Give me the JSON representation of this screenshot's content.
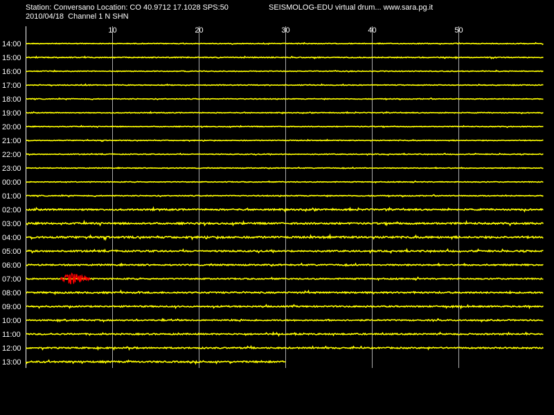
{
  "header": {
    "station_line": "Station: Conversano Location: CO 40.9712 17.1028 SPS:50",
    "date_channel_line": "2010/04/18  Channel 1 N SHN",
    "software_line": "SEISMOLOG-EDU virtual drum... www.sara.pg.it"
  },
  "colors": {
    "background": "#000000",
    "trace": "#ffff00",
    "event": "#ff0000",
    "grid": "#ffffff",
    "text": "#ffffff"
  },
  "chart_data": {
    "type": "line",
    "x_ticks": [
      "10",
      "20",
      "30",
      "40",
      "50"
    ],
    "x_tick_values": [
      10,
      20,
      30,
      40,
      50
    ],
    "xlim": [
      0,
      60
    ],
    "grid": true,
    "rows": [
      {
        "label": "14:00",
        "amp": 1.0
      },
      {
        "label": "15:00",
        "amp": 1.2
      },
      {
        "label": "16:00",
        "amp": 1.0
      },
      {
        "label": "17:00",
        "amp": 1.0
      },
      {
        "label": "18:00",
        "amp": 1.0
      },
      {
        "label": "19:00",
        "amp": 1.0
      },
      {
        "label": "20:00",
        "amp": 1.0
      },
      {
        "label": "21:00",
        "amp": 1.0
      },
      {
        "label": "22:00",
        "amp": 1.0
      },
      {
        "label": "23:00",
        "amp": 1.0
      },
      {
        "label": "00:00",
        "amp": 1.0
      },
      {
        "label": "01:00",
        "amp": 1.2
      },
      {
        "label": "02:00",
        "amp": 2.0
      },
      {
        "label": "03:00",
        "amp": 2.2
      },
      {
        "label": "04:00",
        "amp": 2.4
      },
      {
        "label": "05:00",
        "amp": 2.0
      },
      {
        "label": "06:00",
        "amp": 1.8
      },
      {
        "label": "07:00",
        "amp": 1.6,
        "event": {
          "start_min": 4.0,
          "end_min": 7.5,
          "peak_min": 5.2
        }
      },
      {
        "label": "08:00",
        "amp": 2.0
      },
      {
        "label": "09:00",
        "amp": 1.8
      },
      {
        "label": "10:00",
        "amp": 1.6
      },
      {
        "label": "11:00",
        "amp": 1.8
      },
      {
        "label": "12:00",
        "amp": 1.8
      },
      {
        "label": "13:00",
        "amp": 2.0,
        "end_min": 30
      }
    ]
  }
}
